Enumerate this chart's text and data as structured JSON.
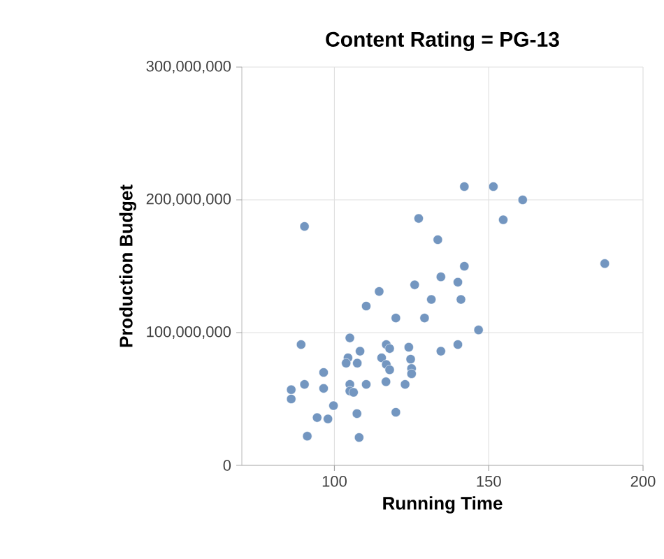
{
  "chart_data": {
    "type": "scatter",
    "title": "Content Rating = PG-13",
    "xlabel": "Running Time",
    "ylabel": "Production Budget",
    "xlim": [
      70,
      200
    ],
    "ylim": [
      0,
      300000000
    ],
    "xticks": [
      100,
      150,
      200
    ],
    "yticks": [
      {
        "value": 0,
        "label": "0"
      },
      {
        "value": 100000000,
        "label": "100,000,000"
      },
      {
        "value": 200000000,
        "label": "200,000,000"
      },
      {
        "value": 300000000,
        "label": "300,000,000"
      }
    ],
    "grid": true,
    "series": [
      {
        "color": "#7396c0",
        "x": [
          90.3,
          127.3,
          133.5,
          134.5,
          126,
          114.5,
          131.4,
          110.3,
          119.9,
          129.2,
          89.2,
          105,
          108.3,
          116.8,
          117.9,
          124.1,
          134.5,
          104.4,
          103.8,
          107.4,
          115.3,
          116.8,
          117.9,
          124.7,
          125,
          125,
          96.5,
          86,
          86,
          90.3,
          96.5,
          105,
          105,
          106.2,
          110.3,
          116.7,
          122.9,
          99.7,
          94.4,
          97.9,
          107.3,
          119.9,
          91.2,
          108,
          142.1,
          151.5,
          161,
          154.7,
          142.1,
          187.6,
          140,
          141,
          146.7,
          140
        ],
        "values": [
          180000000,
          186000000,
          170000000,
          142000000,
          136000000,
          131000000,
          125000000,
          120000000,
          111000000,
          111000000,
          91000000,
          96000000,
          86000000,
          91000000,
          88000000,
          89000000,
          86000000,
          81000000,
          77000000,
          77000000,
          81000000,
          76000000,
          72000000,
          80000000,
          73000000,
          69000000,
          70000000,
          57000000,
          50000000,
          61000000,
          58000000,
          61000000,
          56000000,
          55000000,
          61000000,
          63000000,
          61000000,
          45000000,
          36000000,
          35000000,
          39000000,
          40000000,
          22000000,
          21000000,
          210000000,
          210000000,
          200000000,
          185000000,
          150000000,
          152000000,
          138000000,
          125000000,
          102000000,
          91000000
        ]
      }
    ]
  }
}
